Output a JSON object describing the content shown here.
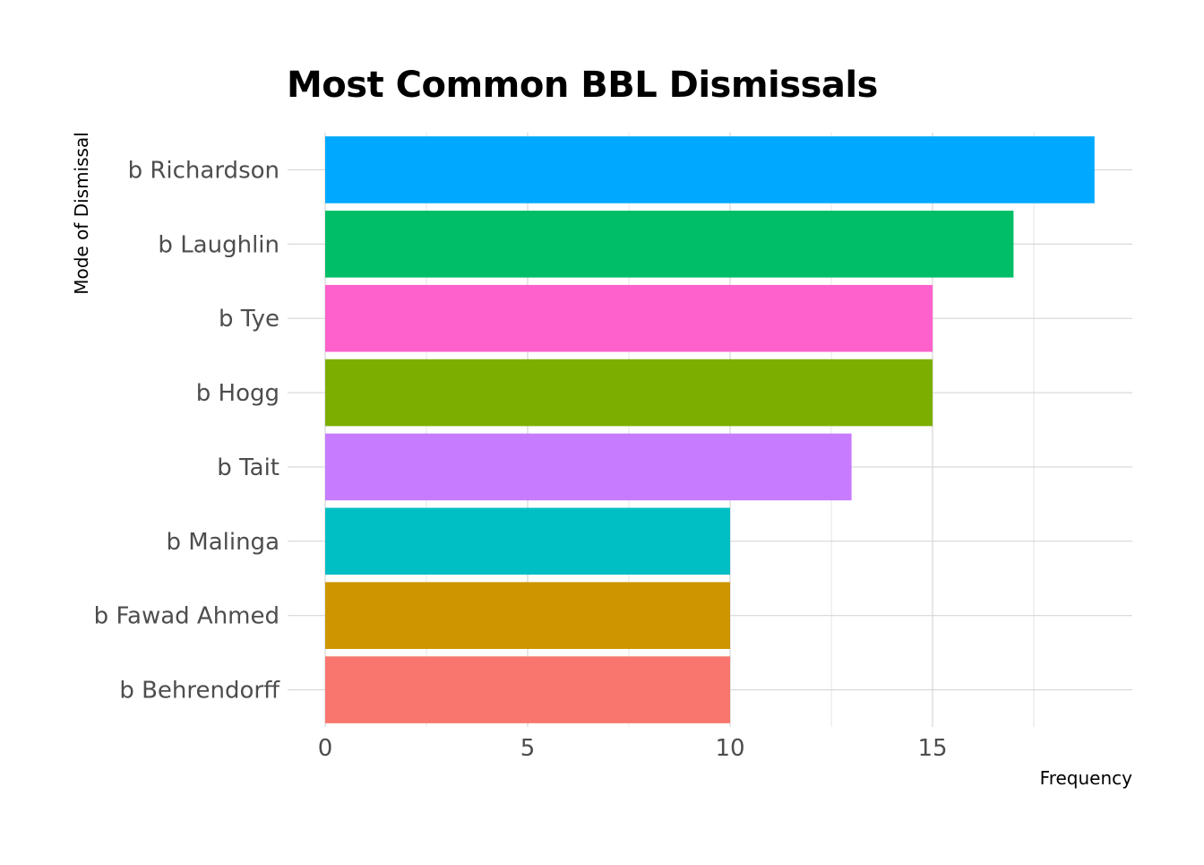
{
  "chart_data": {
    "type": "bar",
    "orientation": "horizontal",
    "title": "Most Common BBL Dismissals",
    "xlabel": "Frequency",
    "ylabel": "Mode of Dismissal",
    "categories": [
      "b Richardson",
      "b Laughlin",
      "b Tye",
      "b Hogg",
      "b Tait",
      "b Malinga",
      "b Fawad Ahmed",
      "b Behrendorff"
    ],
    "values": [
      19,
      17,
      15,
      15,
      13,
      10,
      10,
      10
    ],
    "colors": [
      "#00A9FF",
      "#00BE67",
      "#FF61CC",
      "#7CAE00",
      "#C77CFF",
      "#00BFC4",
      "#CD9600",
      "#F8766D"
    ],
    "xlim": [
      0,
      19.9
    ],
    "xticks": [
      "0",
      "5",
      "10",
      "15"
    ],
    "grid": true,
    "legend": "none"
  }
}
